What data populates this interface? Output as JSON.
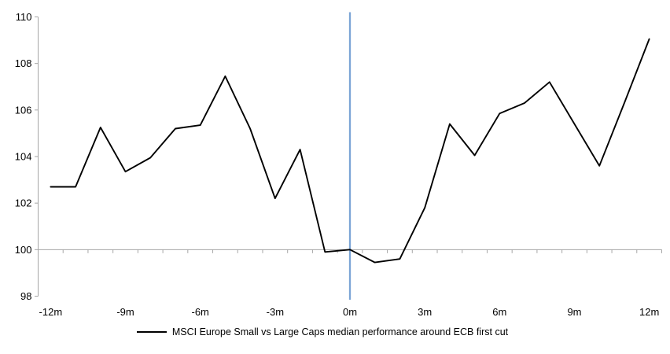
{
  "chart_data": {
    "type": "line",
    "title": "",
    "legend": "MSCI Europe Small vs Large Caps median performance around ECB first cut",
    "x": [
      -12,
      -11,
      -10,
      -9,
      -8,
      -7,
      -6,
      -5,
      -4,
      -3,
      -2,
      -1,
      0,
      1,
      2,
      3,
      4,
      5,
      6,
      7,
      8,
      9,
      10,
      11,
      12
    ],
    "values": [
      102.7,
      102.7,
      105.25,
      103.35,
      103.95,
      105.2,
      105.35,
      107.45,
      105.2,
      102.2,
      104.3,
      99.9,
      100.0,
      99.45,
      99.6,
      101.8,
      105.4,
      104.05,
      105.85,
      106.3,
      107.2,
      105.4,
      103.6,
      106.3,
      109.05
    ],
    "ylim": [
      98,
      110
    ],
    "yticks": [
      98,
      100,
      102,
      104,
      106,
      108,
      110
    ],
    "xticks": [
      -12,
      -9,
      -6,
      -3,
      0,
      3,
      6,
      9,
      12
    ],
    "xtick_labels": [
      "-12m",
      "-9m",
      "-6m",
      "-3m",
      "0m",
      "3m",
      "6m",
      "9m",
      "12m"
    ],
    "x_axis_cross": 100,
    "event_line_x": 0,
    "grid": false,
    "legend_position": "bottom-center",
    "colors": {
      "series": "#000000",
      "event_line": "#7CA5D6",
      "axis": "#A6A6A6",
      "tick_label": "#000000"
    }
  }
}
